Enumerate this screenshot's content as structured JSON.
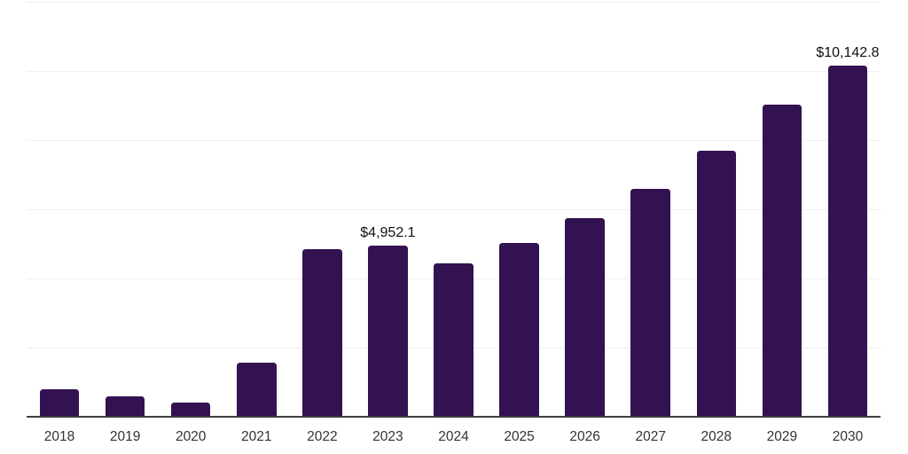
{
  "chart_data": {
    "type": "bar",
    "title": "",
    "xlabel": "",
    "ylabel": "",
    "categories": [
      "2018",
      "2019",
      "2020",
      "2021",
      "2022",
      "2023",
      "2024",
      "2025",
      "2026",
      "2027",
      "2028",
      "2029",
      "2030"
    ],
    "values": [
      785,
      585,
      420,
      1575,
      4850,
      4952.1,
      4430,
      5020,
      5745,
      6585,
      7700,
      9025,
      10142.8
    ],
    "labeled_points": [
      {
        "category": "2023",
        "text": "$4,952.1"
      },
      {
        "category": "2030",
        "text": "$10,142.8"
      }
    ],
    "ylim": [
      0,
      12000
    ],
    "gridline_step": 2000,
    "grid": true,
    "legend": false,
    "colors": {
      "bar": "#321250",
      "gridline": "#efefef",
      "axis_line": "#3f3f3f",
      "value_label": "#111111",
      "tick_label": "#333333",
      "background": "#ffffff"
    }
  }
}
